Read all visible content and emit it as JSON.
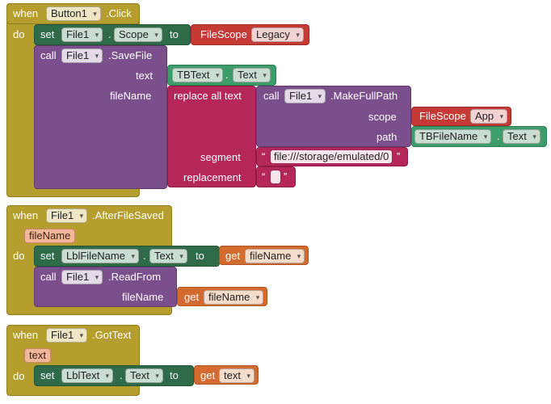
{
  "block1": {
    "when": "when",
    "component": "Button1",
    "event": ".Click",
    "do": "do",
    "set": {
      "set": "set",
      "component": "File1",
      "dot": ".",
      "property": "Scope",
      "to": "to",
      "value_block": "FileScope",
      "value": "Legacy"
    },
    "call": {
      "call": "call",
      "component": "File1",
      "method": ".SaveFile",
      "text_label": "text",
      "text_component": "TBText",
      "text_dot": ".",
      "text_property": "Text",
      "filename_label": "fileName",
      "replace": "replace all text",
      "makefull": {
        "call": "call",
        "component": "File1",
        "method": ".MakeFullPath",
        "scope_label": "scope",
        "scope_block": "FileScope",
        "scope_value": "App",
        "path_label": "path",
        "path_component": "TBFileName",
        "path_dot": ".",
        "path_property": "Text"
      },
      "segment_label": "segment",
      "segment_value": "file:///storage/emulated/0",
      "replacement_label": "replacement",
      "replacement_value": "",
      "quote_open": "“",
      "quote_close": "”"
    }
  },
  "block2": {
    "when": "when",
    "component": "File1",
    "event": ".AfterFileSaved",
    "param": "fileName",
    "do": "do",
    "set": {
      "set": "set",
      "component": "LblFileName",
      "dot": ".",
      "property": "Text",
      "to": "to",
      "get": "get",
      "var": "fileName"
    },
    "call": {
      "call": "call",
      "component": "File1",
      "method": ".ReadFrom",
      "filename_label": "fileName",
      "get": "get",
      "var": "fileName"
    }
  },
  "block3": {
    "when": "when",
    "component": "File1",
    "event": ".GotText",
    "param": "text",
    "do": "do",
    "set": {
      "set": "set",
      "component": "LblText",
      "dot": ".",
      "property": "Text",
      "to": "to",
      "get": "get",
      "var": "text"
    }
  },
  "colors": {
    "event": "#B59D2E",
    "setter": "#2F6B48",
    "procedure": "#7B4F8C",
    "text": "#B5265A",
    "filescope": "#C63A35",
    "getter": "#3D9D6A",
    "variable": "#D36A2E"
  },
  "icons": {
    "dropdown": "▾"
  }
}
